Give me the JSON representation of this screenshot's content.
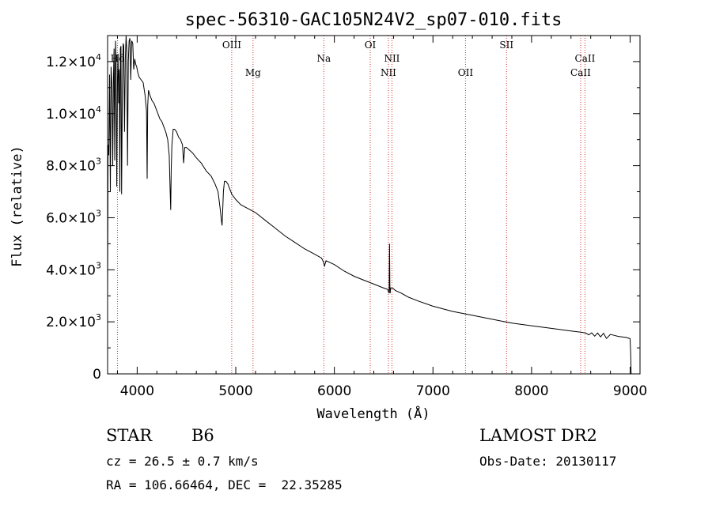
{
  "chart_data": {
    "type": "line",
    "title": "spec-56310-GAC105N24V2_sp07-010.fits",
    "xlabel": "Wavelength (Å)",
    "ylabel": "Flux (relative)",
    "xlim": [
      3700,
      9100
    ],
    "ylim": [
      0,
      13000
    ],
    "xticks": [
      4000,
      5000,
      6000,
      7000,
      8000,
      9000
    ],
    "yticks": [
      {
        "value": 0,
        "mantissa": "0",
        "exponent": ""
      },
      {
        "value": 2000,
        "mantissa": "2.0×10",
        "exponent": "3"
      },
      {
        "value": 4000,
        "mantissa": "4.0×10",
        "exponent": "3"
      },
      {
        "value": 6000,
        "mantissa": "6.0×10",
        "exponent": "3"
      },
      {
        "value": 8000,
        "mantissa": "8.0×10",
        "exponent": "3"
      },
      {
        "value": 10000,
        "mantissa": "1.0×10",
        "exponent": "4"
      },
      {
        "value": 12000,
        "mantissa": "1.2×10",
        "exponent": "4"
      }
    ],
    "series": [
      {
        "x": [
          3700,
          3705,
          3712,
          3720,
          3728,
          3735,
          3745,
          3752,
          3760,
          3766,
          3772,
          3780,
          3786,
          3793,
          3800,
          3806,
          3812,
          3818,
          3824,
          3830,
          3836,
          3842,
          3850,
          3857,
          3864,
          3872,
          3880,
          3888,
          3895,
          3902,
          3910,
          3918,
          3926,
          3935,
          3945,
          3955,
          3965,
          3975,
          3985,
          3995,
          4005,
          4020,
          4040,
          4060,
          4080,
          4095,
          4101,
          4107,
          4115,
          4130,
          4150,
          4170,
          4190,
          4210,
          4230,
          4250,
          4270,
          4290,
          4310,
          4325,
          4335,
          4340,
          4345,
          4352,
          4365,
          4380,
          4400,
          4420,
          4440,
          4460,
          4471,
          4482,
          4500,
          4530,
          4560,
          4600,
          4650,
          4700,
          4750,
          4790,
          4820,
          4840,
          4855,
          4861,
          4867,
          4875,
          4885,
          4900,
          4920,
          4940,
          4960,
          4980,
          5000,
          5050,
          5100,
          5150,
          5200,
          5300,
          5400,
          5500,
          5600,
          5700,
          5800,
          5870,
          5890,
          5900,
          5915,
          6000,
          6100,
          6200,
          6300,
          6400,
          6500,
          6540,
          6556,
          6560,
          6563,
          6566,
          6570,
          6590,
          6620,
          6680,
          6750,
          6850,
          7000,
          7200,
          7400,
          7600,
          7800,
          8000,
          8200,
          8400,
          8500,
          8550,
          8580,
          8610,
          8640,
          8670,
          8700,
          8730,
          8760,
          8800,
          8840,
          8880,
          8920,
          8960,
          8980,
          9000,
          9005,
          9010
        ],
        "y": [
          2900,
          8800,
          8400,
          11500,
          7000,
          11800,
          11000,
          8000,
          11500,
          12500,
          8200,
          12800,
          12000,
          7200,
          11300,
          12300,
          10400,
          11700,
          7000,
          12500,
          12600,
          6900,
          11000,
          12700,
          12600,
          9300,
          12100,
          13000,
          12400,
          8000,
          12000,
          12800,
          12900,
          11300,
          12800,
          12700,
          11700,
          12100,
          11900,
          11800,
          11600,
          11400,
          11300,
          11200,
          10700,
          10100,
          7500,
          10300,
          10900,
          10700,
          10500,
          10400,
          10200,
          10000,
          9800,
          9700,
          9500,
          9300,
          9000,
          8400,
          7000,
          6300,
          7800,
          8800,
          9400,
          9400,
          9300,
          9100,
          9000,
          8800,
          8100,
          8700,
          8700,
          8600,
          8500,
          8300,
          8100,
          7800,
          7600,
          7300,
          7000,
          6400,
          5900,
          5700,
          6200,
          7000,
          7400,
          7400,
          7300,
          7100,
          6900,
          6800,
          6700,
          6500,
          6400,
          6300,
          6200,
          5900,
          5600,
          5300,
          5050,
          4800,
          4600,
          4450,
          4300,
          4150,
          4350,
          4200,
          3950,
          3750,
          3600,
          3450,
          3300,
          3250,
          3100,
          5000,
          3400,
          3100,
          3300,
          3300,
          3200,
          3100,
          2950,
          2800,
          2600,
          2400,
          2250,
          2100,
          1950,
          1850,
          1750,
          1650,
          1600,
          1570,
          1500,
          1580,
          1450,
          1570,
          1420,
          1560,
          1360,
          1520,
          1480,
          1440,
          1420,
          1400,
          1380,
          1350,
          800,
          0
        ]
      }
    ],
    "spectral_lines": [
      {
        "name": "Hδ",
        "wavelength": 3800,
        "row": 1
      },
      {
        "name": "OIII",
        "wavelength": 4959,
        "row": 0
      },
      {
        "name": "Mg",
        "wavelength": 5175,
        "row": 2
      },
      {
        "name": "Na",
        "wavelength": 5893,
        "row": 1
      },
      {
        "name": "OI",
        "wavelength": 6364,
        "row": 0
      },
      {
        "name": "NII",
        "wavelength": 6548,
        "row": 2
      },
      {
        "name": "NII",
        "wavelength": 6584,
        "row": 1
      },
      {
        "name": "OII",
        "wavelength": 7330,
        "row": 2
      },
      {
        "name": "SII",
        "wavelength": 7746,
        "row": 0
      },
      {
        "name": "CaII",
        "wavelength": 8498,
        "row": 2
      },
      {
        "name": "CaII",
        "wavelength": 8542,
        "row": 1
      }
    ],
    "line_color": "#000000",
    "marker_color": "#cc3333"
  },
  "info": {
    "object_class": "STAR",
    "subclass": "B6",
    "survey": "LAMOST DR2",
    "cz": "cz = 26.5 ± 0.7 km/s",
    "obs_date": "Obs-Date: 20130117",
    "coords": "RA = 106.66464, DEC =  22.35285"
  }
}
